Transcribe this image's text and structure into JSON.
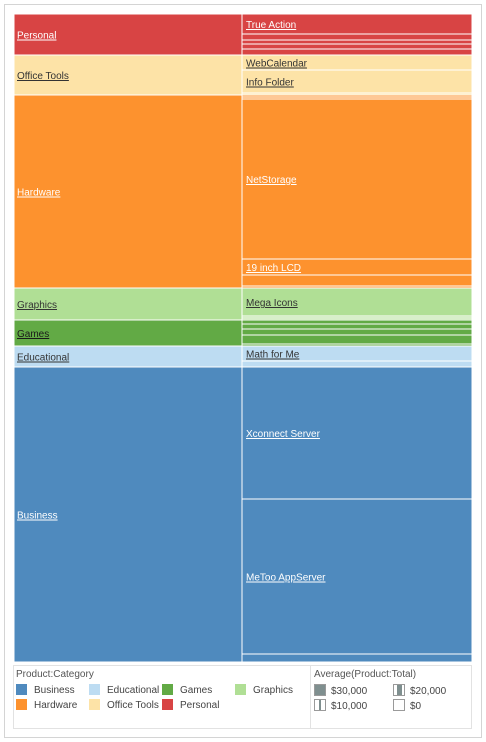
{
  "chart_data": {
    "type": "treemap",
    "categories": [
      {
        "name": "Personal",
        "color": "#d84444",
        "value": 41,
        "products": [
          {
            "label": "True Action",
            "value": 20
          },
          {
            "label": "",
            "value": 6
          },
          {
            "label": "",
            "value": 4
          },
          {
            "label": "",
            "value": 5
          },
          {
            "label": "",
            "value": 6
          }
        ]
      },
      {
        "name": "Office Tools",
        "color": "#fde3a7",
        "value": 40,
        "products": [
          {
            "label": "WebCalendar",
            "value": 15
          },
          {
            "label": "Info Folder",
            "value": 23
          },
          {
            "label": "",
            "value": 2
          }
        ]
      },
      {
        "name": "Hardware",
        "color": "#fd922e",
        "value": 193,
        "products": [
          {
            "label": "",
            "value": 2
          },
          {
            "label": "",
            "value": 2
          },
          {
            "label": "NetStorage",
            "value": 160
          },
          {
            "label": "19 inch LCD",
            "value": 16
          },
          {
            "label": "",
            "value": 11
          },
          {
            "label": "",
            "value": 2
          }
        ]
      },
      {
        "name": "Graphics",
        "color": "#b0df95",
        "value": 32,
        "products": [
          {
            "label": "Mega Icons",
            "value": 28
          },
          {
            "label": "",
            "value": 2
          },
          {
            "label": "",
            "value": 2
          }
        ]
      },
      {
        "name": "Games",
        "color": "#62aa45",
        "value": 26,
        "products": [
          {
            "label": "",
            "value": 4
          },
          {
            "label": "",
            "value": 5
          },
          {
            "label": "",
            "value": 6
          },
          {
            "label": "",
            "value": 9
          },
          {
            "label": "",
            "value": 2
          }
        ]
      },
      {
        "name": "Educational",
        "color": "#bddcf2",
        "value": 21,
        "products": [
          {
            "label": "Math for Me",
            "value": 15
          },
          {
            "label": "",
            "value": 6
          }
        ]
      },
      {
        "name": "Business",
        "color": "#4f8abe",
        "value": 295,
        "products": [
          {
            "label": "Xconnect Server",
            "value": 132
          },
          {
            "label": "MeToo AppServer",
            "value": 155
          },
          {
            "label": "",
            "value": 8
          }
        ]
      }
    ]
  },
  "legend": {
    "color_title": "Product:Category",
    "color_items": [
      {
        "label": "Business",
        "color": "#4f8abe"
      },
      {
        "label": "Educational",
        "color": "#bddcf2"
      },
      {
        "label": "Games",
        "color": "#62aa45"
      },
      {
        "label": "Graphics",
        "color": "#b0df95"
      },
      {
        "label": "Hardware",
        "color": "#fd922e"
      },
      {
        "label": "Office Tools",
        "color": "#fde3a7"
      },
      {
        "label": "Personal",
        "color": "#d84444"
      }
    ],
    "size_title": "Average(Product:Total)",
    "size_items": [
      {
        "label": "$30,000",
        "fill": 1.0
      },
      {
        "label": "$20,000",
        "fill": 0.5
      },
      {
        "label": "$10,000",
        "fill": 0.25
      },
      {
        "label": "$0",
        "fill": 0.0
      }
    ]
  }
}
